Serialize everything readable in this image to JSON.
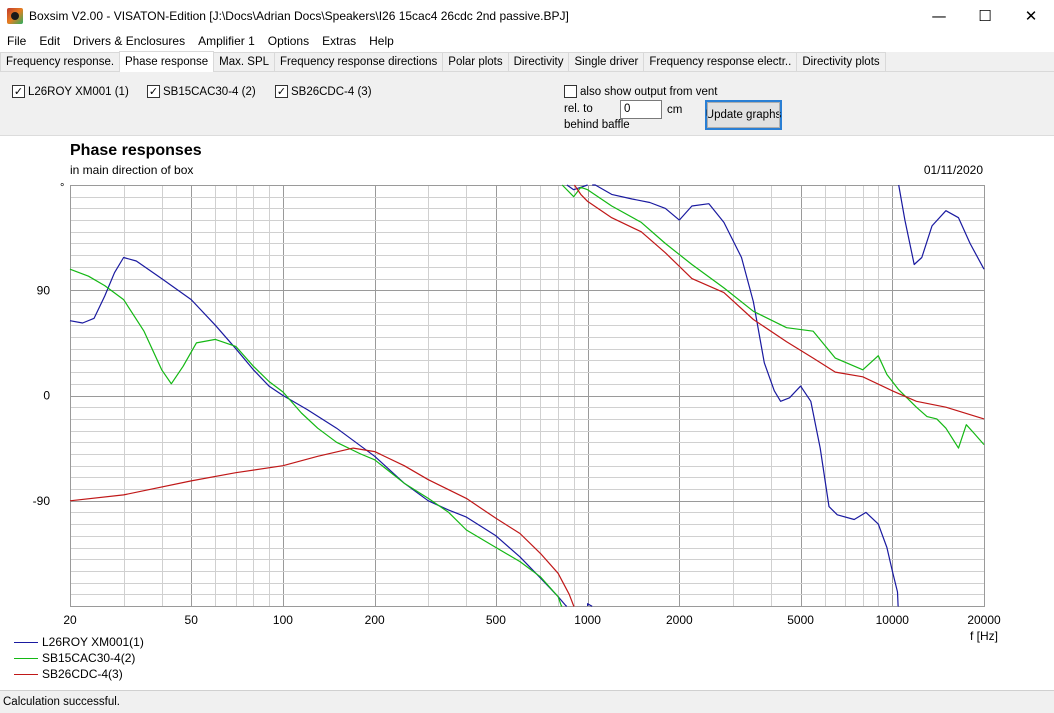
{
  "window": {
    "title": "Boxsim V2.00 - VISATON-Edition [J:\\Docs\\Adrian Docs\\Speakers\\I26 15cac4 26cdc 2nd passive.BPJ]",
    "minimize": "—",
    "maximize": "☐",
    "close": "✕"
  },
  "menu": [
    "File",
    "Edit",
    "Drivers & Enclosures",
    "Amplifier 1",
    "Options",
    "Extras",
    "Help"
  ],
  "tabs": [
    {
      "label": "Frequency response.",
      "active": false
    },
    {
      "label": "Phase response",
      "active": true
    },
    {
      "label": "Max. SPL",
      "active": false
    },
    {
      "label": "Frequency response directions",
      "active": false
    },
    {
      "label": "Polar plots",
      "active": false
    },
    {
      "label": "Directivity",
      "active": false
    },
    {
      "label": "Single driver",
      "active": false
    },
    {
      "label": "Frequency response electr..",
      "active": false
    },
    {
      "label": "Directivity plots",
      "active": false
    }
  ],
  "options": {
    "drivers": [
      {
        "label": "L26ROY XM001 (1)",
        "checked": true
      },
      {
        "label": "SB15CAC30-4 (2)",
        "checked": true
      },
      {
        "label": "SB26CDC-4 (3)",
        "checked": true
      }
    ],
    "vent": {
      "label": "also show output from vent",
      "checked": false
    },
    "rel_to_label": "rel. to",
    "behind_baffle_label": "behind baffle",
    "offset_value": "0",
    "offset_unit": "cm",
    "update_button": "Update graphs"
  },
  "chart": {
    "title": "Phase responses",
    "subtitle": "in main direction of box",
    "date": "01/11/2020",
    "y_unit": "°",
    "x_unit": "f [Hz]"
  },
  "chart_data": {
    "type": "line",
    "title": "Phase responses",
    "subtitle": "in main direction of box",
    "xlabel": "f [Hz]",
    "ylabel": "°",
    "xscale": "log",
    "xlim": [
      20,
      20000
    ],
    "ylim": [
      -180,
      180
    ],
    "xticks": [
      20,
      50,
      100,
      200,
      500,
      1000,
      2000,
      5000,
      10000,
      20000
    ],
    "xtick_labels": [
      "20",
      "50",
      "100",
      "200",
      "500",
      "1000",
      "2000",
      "5000",
      "10000",
      "20000"
    ],
    "yticks": [
      90,
      0,
      -90
    ],
    "ytick_labels": [
      "90",
      "0",
      "-90"
    ],
    "grid": true,
    "legend_position": "bottom-left",
    "series": [
      {
        "name": "L26ROY XM001(1)",
        "color": "#1a1aa0",
        "points": [
          [
            20,
            64
          ],
          [
            22,
            62
          ],
          [
            24,
            66
          ],
          [
            26,
            85
          ],
          [
            28,
            105
          ],
          [
            30,
            118
          ],
          [
            33,
            115
          ],
          [
            40,
            100
          ],
          [
            50,
            82
          ],
          [
            60,
            60
          ],
          [
            70,
            40
          ],
          [
            80,
            22
          ],
          [
            90,
            8
          ],
          [
            100,
            0
          ],
          [
            120,
            -12
          ],
          [
            150,
            -28
          ],
          [
            200,
            -52
          ],
          [
            250,
            -75
          ],
          [
            300,
            -90
          ],
          [
            350,
            -98
          ],
          [
            400,
            -104
          ],
          [
            500,
            -120
          ],
          [
            600,
            -138
          ],
          [
            700,
            -156
          ],
          [
            800,
            -172
          ],
          [
            850,
            -180
          ],
          [
            855,
            180
          ],
          [
            900,
            176
          ],
          [
            950,
            178
          ],
          [
            1000,
            -178
          ],
          [
            1030,
            -180
          ],
          [
            1035,
            180
          ],
          [
            1060,
            180
          ],
          [
            1200,
            172
          ],
          [
            1400,
            168
          ],
          [
            1600,
            165
          ],
          [
            1800,
            160
          ],
          [
            2000,
            150
          ],
          [
            2200,
            162
          ],
          [
            2500,
            164
          ],
          [
            2800,
            148
          ],
          [
            3200,
            118
          ],
          [
            3500,
            80
          ],
          [
            3800,
            28
          ],
          [
            4100,
            4
          ],
          [
            4300,
            -5
          ],
          [
            4600,
            -2
          ],
          [
            5000,
            8
          ],
          [
            5400,
            -5
          ],
          [
            5800,
            -45
          ],
          [
            6200,
            -95
          ],
          [
            6600,
            -102
          ],
          [
            7500,
            -106
          ],
          [
            8200,
            -100
          ],
          [
            9000,
            -110
          ],
          [
            9600,
            -130
          ],
          [
            10000,
            -150
          ],
          [
            10400,
            -168
          ],
          [
            10450,
            -180
          ],
          [
            10500,
            180
          ],
          [
            11000,
            150
          ],
          [
            11800,
            112
          ],
          [
            12500,
            118
          ],
          [
            13500,
            145
          ],
          [
            15000,
            158
          ],
          [
            16500,
            152
          ],
          [
            18000,
            130
          ],
          [
            20000,
            108
          ]
        ]
      },
      {
        "name": "SB15CAC30-4(2)",
        "color": "#14b814",
        "points": [
          [
            20,
            108
          ],
          [
            23,
            102
          ],
          [
            26,
            94
          ],
          [
            30,
            82
          ],
          [
            35,
            55
          ],
          [
            40,
            22
          ],
          [
            43,
            10
          ],
          [
            47,
            25
          ],
          [
            52,
            45
          ],
          [
            60,
            48
          ],
          [
            70,
            42
          ],
          [
            80,
            25
          ],
          [
            90,
            12
          ],
          [
            100,
            3
          ],
          [
            115,
            -15
          ],
          [
            130,
            -28
          ],
          [
            150,
            -40
          ],
          [
            180,
            -50
          ],
          [
            200,
            -55
          ],
          [
            250,
            -75
          ],
          [
            300,
            -88
          ],
          [
            350,
            -100
          ],
          [
            400,
            -115
          ],
          [
            500,
            -130
          ],
          [
            600,
            -142
          ],
          [
            700,
            -155
          ],
          [
            800,
            -172
          ],
          [
            820,
            -180
          ],
          [
            825,
            180
          ],
          [
            900,
            170
          ],
          [
            950,
            178
          ],
          [
            1000,
            176
          ],
          [
            1200,
            162
          ],
          [
            1500,
            148
          ],
          [
            1800,
            130
          ],
          [
            2200,
            112
          ],
          [
            2800,
            92
          ],
          [
            3500,
            72
          ],
          [
            4500,
            58
          ],
          [
            5500,
            55
          ],
          [
            6500,
            32
          ],
          [
            8000,
            22
          ],
          [
            9000,
            34
          ],
          [
            9600,
            18
          ],
          [
            10500,
            5
          ],
          [
            12000,
            -10
          ],
          [
            13000,
            -18
          ],
          [
            14000,
            -20
          ],
          [
            15000,
            -28
          ],
          [
            16500,
            -45
          ],
          [
            17500,
            -25
          ],
          [
            18500,
            -32
          ],
          [
            20000,
            -42
          ]
        ]
      },
      {
        "name": "SB26CDC-4(3)",
        "color": "#c01818",
        "points": [
          [
            20,
            -90
          ],
          [
            30,
            -85
          ],
          [
            50,
            -73
          ],
          [
            70,
            -66
          ],
          [
            100,
            -60
          ],
          [
            130,
            -52
          ],
          [
            170,
            -45
          ],
          [
            200,
            -48
          ],
          [
            250,
            -60
          ],
          [
            300,
            -72
          ],
          [
            400,
            -88
          ],
          [
            500,
            -105
          ],
          [
            600,
            -118
          ],
          [
            700,
            -135
          ],
          [
            800,
            -152
          ],
          [
            870,
            -170
          ],
          [
            900,
            -180
          ],
          [
            905,
            180
          ],
          [
            950,
            172
          ],
          [
            1000,
            166
          ],
          [
            1200,
            152
          ],
          [
            1500,
            140
          ],
          [
            1800,
            122
          ],
          [
            2200,
            100
          ],
          [
            2800,
            88
          ],
          [
            3500,
            65
          ],
          [
            4500,
            46
          ],
          [
            5500,
            32
          ],
          [
            6500,
            20
          ],
          [
            8000,
            16
          ],
          [
            10000,
            4
          ],
          [
            12000,
            -5
          ],
          [
            15000,
            -10
          ],
          [
            20000,
            -20
          ]
        ]
      }
    ]
  },
  "status": "Calculation successful."
}
